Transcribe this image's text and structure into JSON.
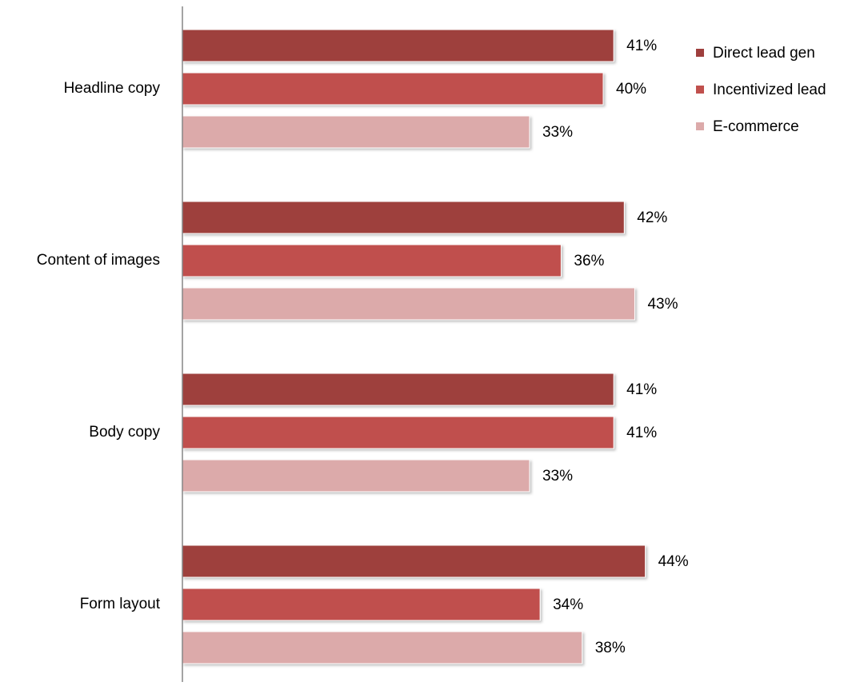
{
  "chart_data": {
    "type": "bar",
    "orientation": "horizontal",
    "categories": [
      "Headline copy",
      "Content of images",
      "Body copy",
      "Form layout"
    ],
    "series": [
      {
        "name": "Direct lead gen",
        "values": [
          41,
          42,
          41,
          44
        ],
        "color": "#9E3F3D"
      },
      {
        "name": "Incentivized lead",
        "values": [
          40,
          36,
          41,
          34
        ],
        "color": "#C0504D"
      },
      {
        "name": "E-commerce",
        "values": [
          33,
          43,
          33,
          38
        ],
        "color": "#DCAAAA"
      }
    ],
    "value_suffix": "%",
    "xlim": [
      0,
      50
    ],
    "grid": false,
    "legend_position": "top-right"
  }
}
